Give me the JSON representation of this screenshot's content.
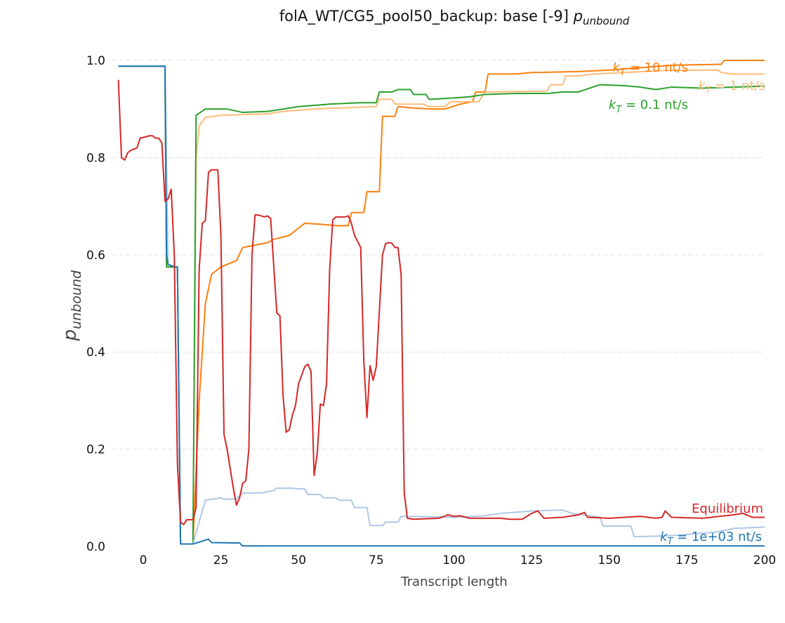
{
  "chart_data": {
    "type": "line",
    "title": "folA_WT/CG5_pool50_backup: base [-9] ",
    "title_symbol": "p",
    "title_subscript": "unbound",
    "x_label": "Transcript length",
    "y_label": "p",
    "y_label_subscript": "unbound",
    "xlim": [
      -10,
      200
    ],
    "ylim": [
      0,
      1
    ],
    "xticks": [
      0,
      25,
      50,
      75,
      100,
      125,
      150,
      175,
      200
    ],
    "yticks": [
      {
        "value": 0,
        "label": "0.0"
      },
      0.2,
      0.4,
      0.6,
      0.8,
      {
        "value": 1,
        "label": "1.0"
      }
    ],
    "grid": true,
    "series": [
      {
        "name": "k",
        "name_sub": "T",
        "name_suffix": " = 10 nt/s",
        "color": "#ff7f0e",
        "x": [
          -8,
          7,
          7.5,
          11,
          12,
          16,
          18,
          20,
          22,
          25,
          30,
          32,
          40,
          42,
          47,
          52,
          57,
          62,
          66,
          67,
          71,
          72,
          76,
          77,
          81,
          82,
          87,
          93,
          97,
          102,
          106,
          107,
          110,
          111,
          120,
          125,
          140,
          150,
          170,
          186,
          187,
          200
        ],
        "values": [
          0.988,
          0.988,
          0.575,
          0.575,
          0.005,
          0.005,
          0.3,
          0.5,
          0.56,
          0.575,
          0.588,
          0.615,
          0.625,
          0.632,
          0.64,
          0.665,
          0.663,
          0.66,
          0.66,
          0.687,
          0.687,
          0.73,
          0.73,
          0.885,
          0.885,
          0.905,
          0.902,
          0.9,
          0.9,
          0.91,
          0.915,
          0.935,
          0.935,
          0.972,
          0.972,
          0.975,
          0.977,
          0.98,
          0.99,
          0.992,
          1.0,
          1.0
        ]
      },
      {
        "name": "k",
        "name_sub": "T",
        "name_suffix": " = 1 nt/s",
        "color": "#ffbb78",
        "x": [
          -8,
          7,
          7.5,
          11,
          12,
          16,
          17,
          18,
          20,
          25,
          30,
          40,
          45,
          55,
          75,
          76,
          80,
          81,
          90,
          92,
          97,
          99,
          108,
          110,
          130,
          131,
          135,
          136,
          140,
          145,
          155,
          170,
          185,
          186,
          190,
          200
        ],
        "values": [
          0.988,
          0.988,
          0.575,
          0.575,
          0.005,
          0.005,
          0.8,
          0.865,
          0.883,
          0.887,
          0.888,
          0.89,
          0.895,
          0.9,
          0.905,
          0.92,
          0.92,
          0.91,
          0.91,
          0.905,
          0.905,
          0.915,
          0.915,
          0.935,
          0.937,
          0.95,
          0.95,
          0.968,
          0.968,
          0.972,
          0.975,
          0.98,
          0.98,
          0.975,
          0.972,
          0.972
        ]
      },
      {
        "name": "k",
        "name_sub": "T",
        "name_suffix": " = 0.1 nt/s",
        "color": "#2ca02c",
        "x": [
          -8,
          7,
          7.5,
          11,
          12,
          16,
          17,
          20,
          27,
          32,
          40,
          45,
          50,
          60,
          70,
          75,
          76,
          80,
          82,
          86,
          87,
          91,
          92,
          98,
          105,
          110,
          120,
          130,
          135,
          140,
          147,
          155,
          160,
          165,
          170,
          180,
          190,
          200
        ],
        "values": [
          0.988,
          0.988,
          0.575,
          0.575,
          0.005,
          0.005,
          0.887,
          0.9,
          0.9,
          0.893,
          0.895,
          0.9,
          0.905,
          0.91,
          0.913,
          0.913,
          0.935,
          0.935,
          0.94,
          0.94,
          0.93,
          0.93,
          0.92,
          0.922,
          0.925,
          0.93,
          0.932,
          0.932,
          0.935,
          0.935,
          0.95,
          0.948,
          0.945,
          0.94,
          0.945,
          0.943,
          0.945,
          0.947
        ]
      },
      {
        "color": "#aec7e8",
        "x": [
          -8,
          7,
          8,
          11,
          12,
          16,
          20,
          25,
          26,
          30,
          32,
          38,
          42,
          43,
          47,
          52,
          53,
          57,
          58,
          62,
          63,
          67,
          68,
          72,
          73,
          77,
          78,
          82,
          83,
          100,
          110,
          115,
          125,
          135,
          138,
          145,
          147,
          148,
          157,
          158,
          170,
          185,
          190,
          200
        ],
        "values": [
          0.988,
          0.988,
          0.58,
          0.575,
          0.005,
          0.005,
          0.095,
          0.1,
          0.097,
          0.098,
          0.11,
          0.11,
          0.115,
          0.12,
          0.12,
          0.118,
          0.107,
          0.107,
          0.1,
          0.1,
          0.095,
          0.095,
          0.08,
          0.08,
          0.043,
          0.043,
          0.05,
          0.05,
          0.062,
          0.06,
          0.063,
          0.068,
          0.073,
          0.075,
          0.068,
          0.062,
          0.06,
          0.042,
          0.042,
          0.02,
          0.022,
          0.03,
          0.037,
          0.04
        ]
      },
      {
        "name": "k",
        "name_sub": "T",
        "name_suffix": " = 1e+03 nt/s",
        "color": "#1f77b4",
        "x": [
          -8,
          7,
          7.5,
          8,
          10,
          11,
          12,
          16,
          21,
          22,
          31,
          32,
          200
        ],
        "values": [
          0.988,
          0.988,
          0.6,
          0.58,
          0.575,
          0.575,
          0.005,
          0.005,
          0.015,
          0.008,
          0.007,
          0.001,
          0.001
        ]
      },
      {
        "name": "Equilibrium",
        "color": "#d62728",
        "x": [
          -8,
          -7,
          -6,
          -5,
          -4,
          -2,
          -1,
          1,
          2,
          3,
          4,
          5,
          6,
          7,
          8,
          9,
          10,
          11,
          12,
          13,
          14,
          16,
          17,
          18,
          19,
          20,
          21,
          22,
          24,
          25,
          26,
          27,
          29,
          30,
          31,
          32,
          33,
          34,
          35,
          36,
          37,
          38,
          39,
          40,
          41,
          43,
          44,
          45,
          46,
          47,
          48,
          49,
          50,
          52,
          53,
          54,
          55,
          56,
          57,
          58,
          59,
          60,
          61,
          62,
          65,
          66,
          67,
          68,
          70,
          71,
          72,
          73,
          74,
          75,
          77,
          78,
          79,
          80,
          81,
          82,
          83,
          84,
          85,
          87,
          95,
          97,
          98,
          100,
          102,
          105,
          115,
          118,
          122,
          125,
          127,
          129,
          135,
          140,
          142,
          143,
          150,
          160,
          165,
          167,
          168,
          170,
          180,
          190,
          193,
          196,
          200
        ],
        "values": [
          0.96,
          0.8,
          0.795,
          0.81,
          0.815,
          0.82,
          0.84,
          0.843,
          0.845,
          0.845,
          0.84,
          0.84,
          0.83,
          0.71,
          0.715,
          0.735,
          0.6,
          0.17,
          0.05,
          0.045,
          0.055,
          0.055,
          0.08,
          0.57,
          0.665,
          0.67,
          0.77,
          0.775,
          0.775,
          0.64,
          0.23,
          0.2,
          0.12,
          0.085,
          0.1,
          0.13,
          0.135,
          0.2,
          0.6,
          0.682,
          0.682,
          0.68,
          0.678,
          0.68,
          0.675,
          0.48,
          0.475,
          0.31,
          0.235,
          0.24,
          0.27,
          0.29,
          0.335,
          0.37,
          0.375,
          0.36,
          0.146,
          0.19,
          0.293,
          0.29,
          0.335,
          0.57,
          0.672,
          0.678,
          0.678,
          0.68,
          0.665,
          0.64,
          0.615,
          0.38,
          0.265,
          0.372,
          0.342,
          0.37,
          0.6,
          0.623,
          0.625,
          0.624,
          0.615,
          0.615,
          0.56,
          0.11,
          0.058,
          0.056,
          0.058,
          0.062,
          0.065,
          0.062,
          0.063,
          0.058,
          0.058,
          0.056,
          0.056,
          0.068,
          0.073,
          0.058,
          0.06,
          0.065,
          0.07,
          0.06,
          0.058,
          0.062,
          0.058,
          0.06,
          0.073,
          0.06,
          0.058,
          0.065,
          0.068,
          0.06,
          0.06
        ]
      }
    ]
  }
}
